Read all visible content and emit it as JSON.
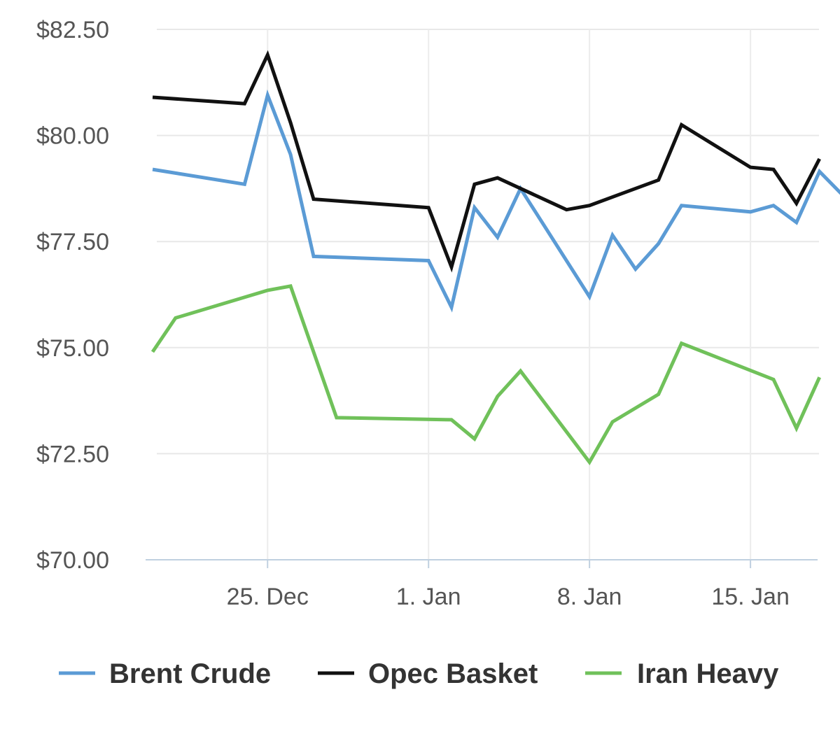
{
  "chart_data": {
    "type": "line",
    "title": "",
    "xlabel": "",
    "ylabel": "",
    "ylim": [
      70,
      82.5
    ],
    "xlim": [
      "2023-12-20",
      "2024-01-19"
    ],
    "y_ticks": [
      {
        "value": 70,
        "label": "$70.00"
      },
      {
        "value": 72.5,
        "label": "$72.50"
      },
      {
        "value": 75,
        "label": "$75.00"
      },
      {
        "value": 77.5,
        "label": "$77.50"
      },
      {
        "value": 80,
        "label": "$80.00"
      },
      {
        "value": 82.5,
        "label": "$82.50"
      }
    ],
    "x_ticks": [
      {
        "date": "2023-12-25",
        "label": "25. Dec"
      },
      {
        "date": "2024-01-01",
        "label": "1. Jan"
      },
      {
        "date": "2024-01-08",
        "label": "8. Jan"
      },
      {
        "date": "2024-01-15",
        "label": "15. Jan"
      }
    ],
    "grid": true,
    "legend_position": "bottom",
    "series": [
      {
        "name": "Brent Crude",
        "color": "#5b9bd5",
        "points": [
          {
            "x": "2023-12-20",
            "y": 79.2
          },
          {
            "x": "2023-12-24",
            "y": 78.85
          },
          {
            "x": "2023-12-25",
            "y": 80.95
          },
          {
            "x": "2023-12-26",
            "y": 79.55
          },
          {
            "x": "2023-12-27",
            "y": 77.15
          },
          {
            "x": "2024-01-01",
            "y": 77.05
          },
          {
            "x": "2024-01-02",
            "y": 75.95
          },
          {
            "x": "2024-01-03",
            "y": 78.3
          },
          {
            "x": "2024-01-04",
            "y": 77.6
          },
          {
            "x": "2024-01-05",
            "y": 78.75
          },
          {
            "x": "2024-01-08",
            "y": 76.2
          },
          {
            "x": "2024-01-09",
            "y": 77.65
          },
          {
            "x": "2024-01-10",
            "y": 76.85
          },
          {
            "x": "2024-01-11",
            "y": 77.45
          },
          {
            "x": "2024-01-12",
            "y": 78.35
          },
          {
            "x": "2024-01-15",
            "y": 78.2
          },
          {
            "x": "2024-01-16",
            "y": 78.35
          },
          {
            "x": "2024-01-17",
            "y": 77.95
          },
          {
            "x": "2024-01-18",
            "y": 79.15
          },
          {
            "x": "2024-01-19",
            "y": 78.6
          }
        ]
      },
      {
        "name": "Opec Basket",
        "color": "#111111",
        "points": [
          {
            "x": "2023-12-20",
            "y": 80.9
          },
          {
            "x": "2023-12-24",
            "y": 80.75
          },
          {
            "x": "2023-12-25",
            "y": 81.9
          },
          {
            "x": "2023-12-26",
            "y": 80.3
          },
          {
            "x": "2023-12-27",
            "y": 78.5
          },
          {
            "x": "2024-01-01",
            "y": 78.3
          },
          {
            "x": "2024-01-02",
            "y": 76.9
          },
          {
            "x": "2024-01-03",
            "y": 78.85
          },
          {
            "x": "2024-01-04",
            "y": 79.0
          },
          {
            "x": "2024-01-07",
            "y": 78.25
          },
          {
            "x": "2024-01-08",
            "y": 78.35
          },
          {
            "x": "2024-01-11",
            "y": 78.95
          },
          {
            "x": "2024-01-12",
            "y": 80.25
          },
          {
            "x": "2024-01-15",
            "y": 79.25
          },
          {
            "x": "2024-01-16",
            "y": 79.2
          },
          {
            "x": "2024-01-17",
            "y": 78.4
          },
          {
            "x": "2024-01-18",
            "y": 79.45
          }
        ]
      },
      {
        "name": "Iran Heavy",
        "color": "#70c15a",
        "points": [
          {
            "x": "2023-12-20",
            "y": 74.9
          },
          {
            "x": "2023-12-21",
            "y": 75.7
          },
          {
            "x": "2023-12-25",
            "y": 76.35
          },
          {
            "x": "2023-12-26",
            "y": 76.45
          },
          {
            "x": "2023-12-28",
            "y": 73.35
          },
          {
            "x": "2024-01-02",
            "y": 73.3
          },
          {
            "x": "2024-01-03",
            "y": 72.85
          },
          {
            "x": "2024-01-04",
            "y": 73.85
          },
          {
            "x": "2024-01-05",
            "y": 74.45
          },
          {
            "x": "2024-01-08",
            "y": 72.3
          },
          {
            "x": "2024-01-09",
            "y": 73.25
          },
          {
            "x": "2024-01-11",
            "y": 73.9
          },
          {
            "x": "2024-01-12",
            "y": 75.1
          },
          {
            "x": "2024-01-16",
            "y": 74.25
          },
          {
            "x": "2024-01-17",
            "y": 73.1
          },
          {
            "x": "2024-01-18",
            "y": 74.3
          }
        ]
      }
    ]
  }
}
